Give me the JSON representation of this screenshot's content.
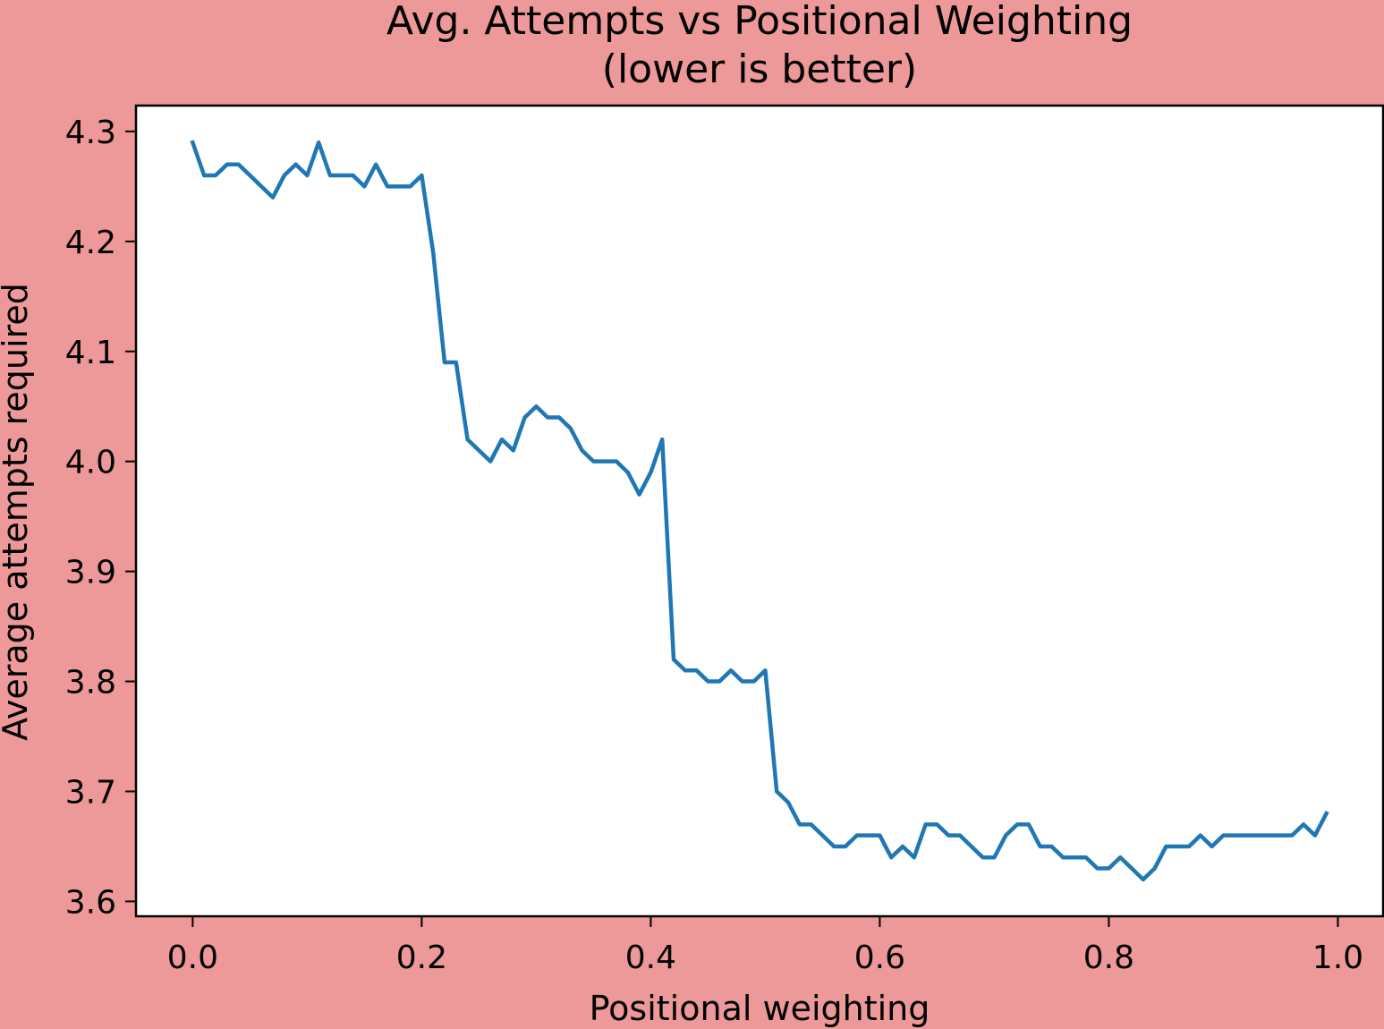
{
  "chart_data": {
    "type": "line",
    "title": "Avg. Attempts vs Positional Weighting",
    "subtitle": "(lower is better)",
    "xlabel": "Positional weighting",
    "ylabel": "Average attempts required",
    "xlim": [
      -0.0495,
      1.0395
    ],
    "ylim": [
      3.5865,
      4.3235
    ],
    "xticks": [
      0.0,
      0.2,
      0.4,
      0.6,
      0.8,
      1.0
    ],
    "xtick_labels": [
      "0.0",
      "0.2",
      "0.4",
      "0.6",
      "0.8",
      "1.0"
    ],
    "yticks": [
      3.6,
      3.7,
      3.8,
      3.9,
      4.0,
      4.1,
      4.2,
      4.3
    ],
    "ytick_labels": [
      "3.6",
      "3.7",
      "3.8",
      "3.9",
      "4.0",
      "4.1",
      "4.2",
      "4.3"
    ],
    "grid": false,
    "background_color": "#ee9999",
    "plot_background_color": "#ffffff",
    "series": [
      {
        "color": "#1f77b4",
        "x": [
          0.0,
          0.01,
          0.02,
          0.03,
          0.04,
          0.05,
          0.06,
          0.07,
          0.08,
          0.09,
          0.1,
          0.11,
          0.12,
          0.13,
          0.14,
          0.15,
          0.16,
          0.17,
          0.18,
          0.19,
          0.2,
          0.21,
          0.22,
          0.23,
          0.24,
          0.25,
          0.26,
          0.27,
          0.28,
          0.29,
          0.3,
          0.31,
          0.32,
          0.33,
          0.34,
          0.35,
          0.36,
          0.37,
          0.38,
          0.39,
          0.4,
          0.41,
          0.42,
          0.43,
          0.44,
          0.45,
          0.46,
          0.47,
          0.48,
          0.49,
          0.5,
          0.51,
          0.52,
          0.53,
          0.54,
          0.55,
          0.56,
          0.57,
          0.58,
          0.59,
          0.6,
          0.61,
          0.62,
          0.63,
          0.64,
          0.65,
          0.66,
          0.67,
          0.68,
          0.69,
          0.7,
          0.71,
          0.72,
          0.73,
          0.74,
          0.75,
          0.76,
          0.77,
          0.78,
          0.79,
          0.8,
          0.81,
          0.82,
          0.83,
          0.84,
          0.85,
          0.86,
          0.87,
          0.88,
          0.89,
          0.9,
          0.91,
          0.92,
          0.93,
          0.94,
          0.95,
          0.96,
          0.97,
          0.98,
          0.99
        ],
        "y": [
          4.29,
          4.26,
          4.26,
          4.27,
          4.27,
          4.26,
          4.25,
          4.24,
          4.26,
          4.27,
          4.26,
          4.29,
          4.26,
          4.26,
          4.26,
          4.25,
          4.27,
          4.25,
          4.25,
          4.25,
          4.26,
          4.19,
          4.09,
          4.09,
          4.02,
          4.01,
          4.0,
          4.02,
          4.01,
          4.04,
          4.05,
          4.04,
          4.04,
          4.03,
          4.01,
          4.0,
          4.0,
          4.0,
          3.99,
          3.97,
          3.99,
          4.02,
          3.82,
          3.81,
          3.81,
          3.8,
          3.8,
          3.81,
          3.8,
          3.8,
          3.81,
          3.7,
          3.69,
          3.67,
          3.67,
          3.66,
          3.65,
          3.65,
          3.66,
          3.66,
          3.66,
          3.64,
          3.65,
          3.64,
          3.67,
          3.67,
          3.66,
          3.66,
          3.65,
          3.64,
          3.64,
          3.66,
          3.67,
          3.67,
          3.65,
          3.65,
          3.64,
          3.64,
          3.64,
          3.63,
          3.63,
          3.64,
          3.63,
          3.62,
          3.63,
          3.65,
          3.65,
          3.65,
          3.66,
          3.65,
          3.66,
          3.66,
          3.66,
          3.66,
          3.66,
          3.66,
          3.66,
          3.67,
          3.66,
          3.68
        ]
      }
    ]
  }
}
